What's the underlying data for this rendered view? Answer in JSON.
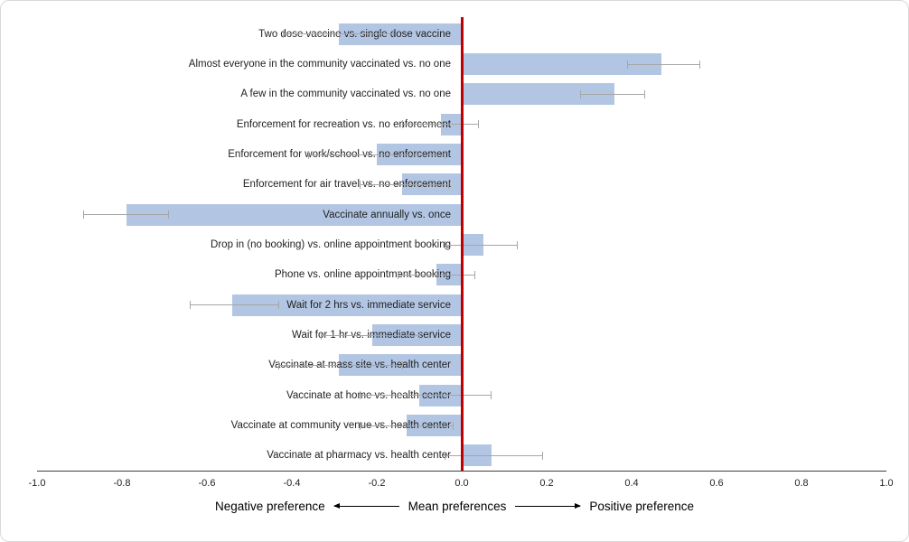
{
  "chart_data": {
    "type": "bar",
    "orientation": "horizontal",
    "title": "",
    "xlabel": "Mean preferences",
    "xlim": [
      -1.0,
      1.0
    ],
    "x_ticks": [
      "-1.0",
      "-0.8",
      "-0.6",
      "-0.4",
      "-0.2",
      "0.0",
      "0.2",
      "0.4",
      "0.6",
      "0.8",
      "1.0"
    ],
    "x_tick_values": [
      -1.0,
      -0.8,
      -0.6,
      -0.4,
      -0.2,
      0.0,
      0.2,
      0.4,
      0.6,
      0.8,
      1.0
    ],
    "grid": false,
    "legend": false,
    "zero_reference_line": true,
    "categories": [
      "Two dose vaccine vs. single dose vaccine",
      "Almost everyone in the community vaccinated vs. no one",
      "A few in the community vaccinated vs. no one",
      "Enforcement for recreation vs. no enforcement",
      "Enforcement for work/school vs. no enforcement",
      "Enforcement for air travel vs. no enforcement",
      "Vaccinate annually vs. once",
      "Drop in (no booking) vs. online appointment booking",
      "Phone vs. online appointment booking",
      "Wait for 2 hrs vs. immediate service",
      "Wait for 1 hr vs. immediate service",
      "Vaccinate at mass site vs. health center",
      "Vaccinate at home vs. health center",
      "Vaccinate at community venue vs. health center",
      "Vaccinate at pharmacy vs. health center"
    ],
    "values": [
      -0.29,
      0.47,
      0.36,
      -0.05,
      -0.2,
      -0.14,
      -0.79,
      0.05,
      -0.06,
      -0.54,
      -0.21,
      -0.29,
      -0.1,
      -0.13,
      0.07
    ],
    "error_low": [
      -0.42,
      0.39,
      0.28,
      -0.14,
      -0.36,
      -0.24,
      -0.89,
      -0.04,
      -0.15,
      -0.64,
      -0.33,
      -0.43,
      -0.24,
      -0.24,
      -0.04
    ],
    "error_high": [
      -0.16,
      0.56,
      0.43,
      0.04,
      -0.04,
      -0.03,
      -0.69,
      0.13,
      0.03,
      -0.43,
      -0.1,
      -0.14,
      0.07,
      -0.02,
      0.19
    ],
    "annotations": {
      "negative_label": "Negative preference",
      "center_label": "Mean preferences",
      "positive_label": "Positive preference"
    },
    "colors": {
      "bar_fill": "#b2c6e4",
      "error_bar": "#a6a6a6",
      "zero_line": "#c00000",
      "axis_line": "#404040",
      "text": "#1f1f1f"
    }
  }
}
